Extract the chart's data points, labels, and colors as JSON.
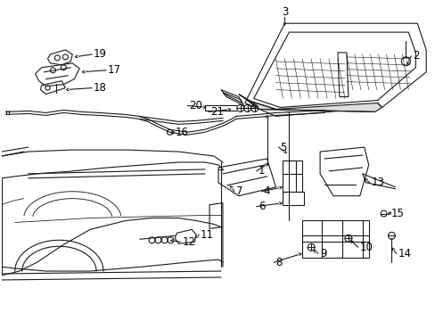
{
  "bg_color": "#ffffff",
  "fig_width": 4.89,
  "fig_height": 3.6,
  "dpi": 100,
  "line_color": "#1a1a1a",
  "text_color": "#000000",
  "font_size": 8.5,
  "lw": 0.8
}
